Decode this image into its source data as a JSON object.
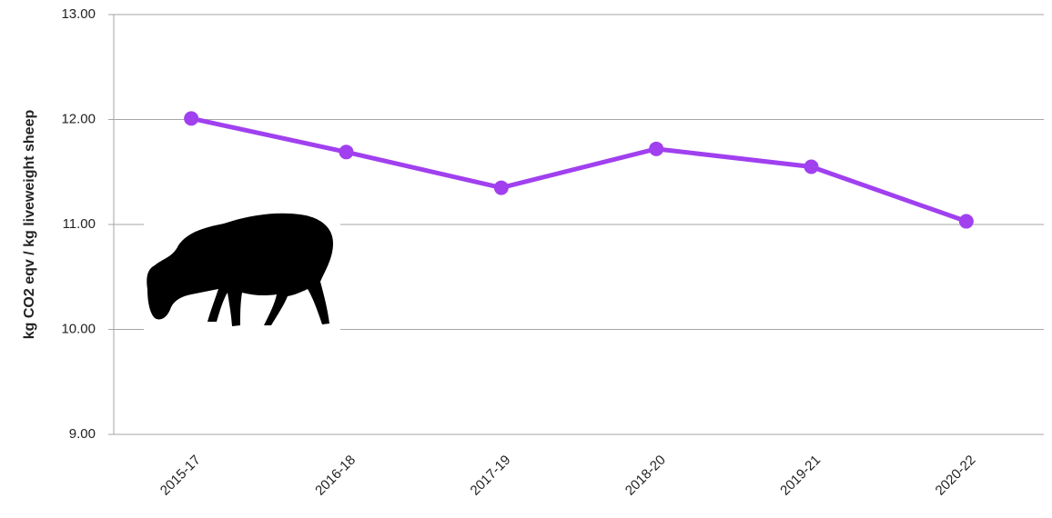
{
  "chart_data": {
    "type": "line",
    "y_label": "kg CO2 eqv / kg liveweight sheep",
    "categories": [
      "2015-17",
      "2016-18",
      "2017-19",
      "2018-20",
      "2019-21",
      "2020-22"
    ],
    "values": [
      12.01,
      11.69,
      11.35,
      11.72,
      11.55,
      11.03
    ],
    "color": "#a040ef",
    "ylim": [
      9,
      13
    ],
    "yticks": [
      {
        "value": 9,
        "label": "9.00"
      },
      {
        "value": 10,
        "label": "10.00"
      },
      {
        "value": 11,
        "label": "11.00"
      },
      {
        "value": 12,
        "label": "12.00"
      },
      {
        "value": 13,
        "label": "13.00"
      }
    ],
    "grid": true
  }
}
